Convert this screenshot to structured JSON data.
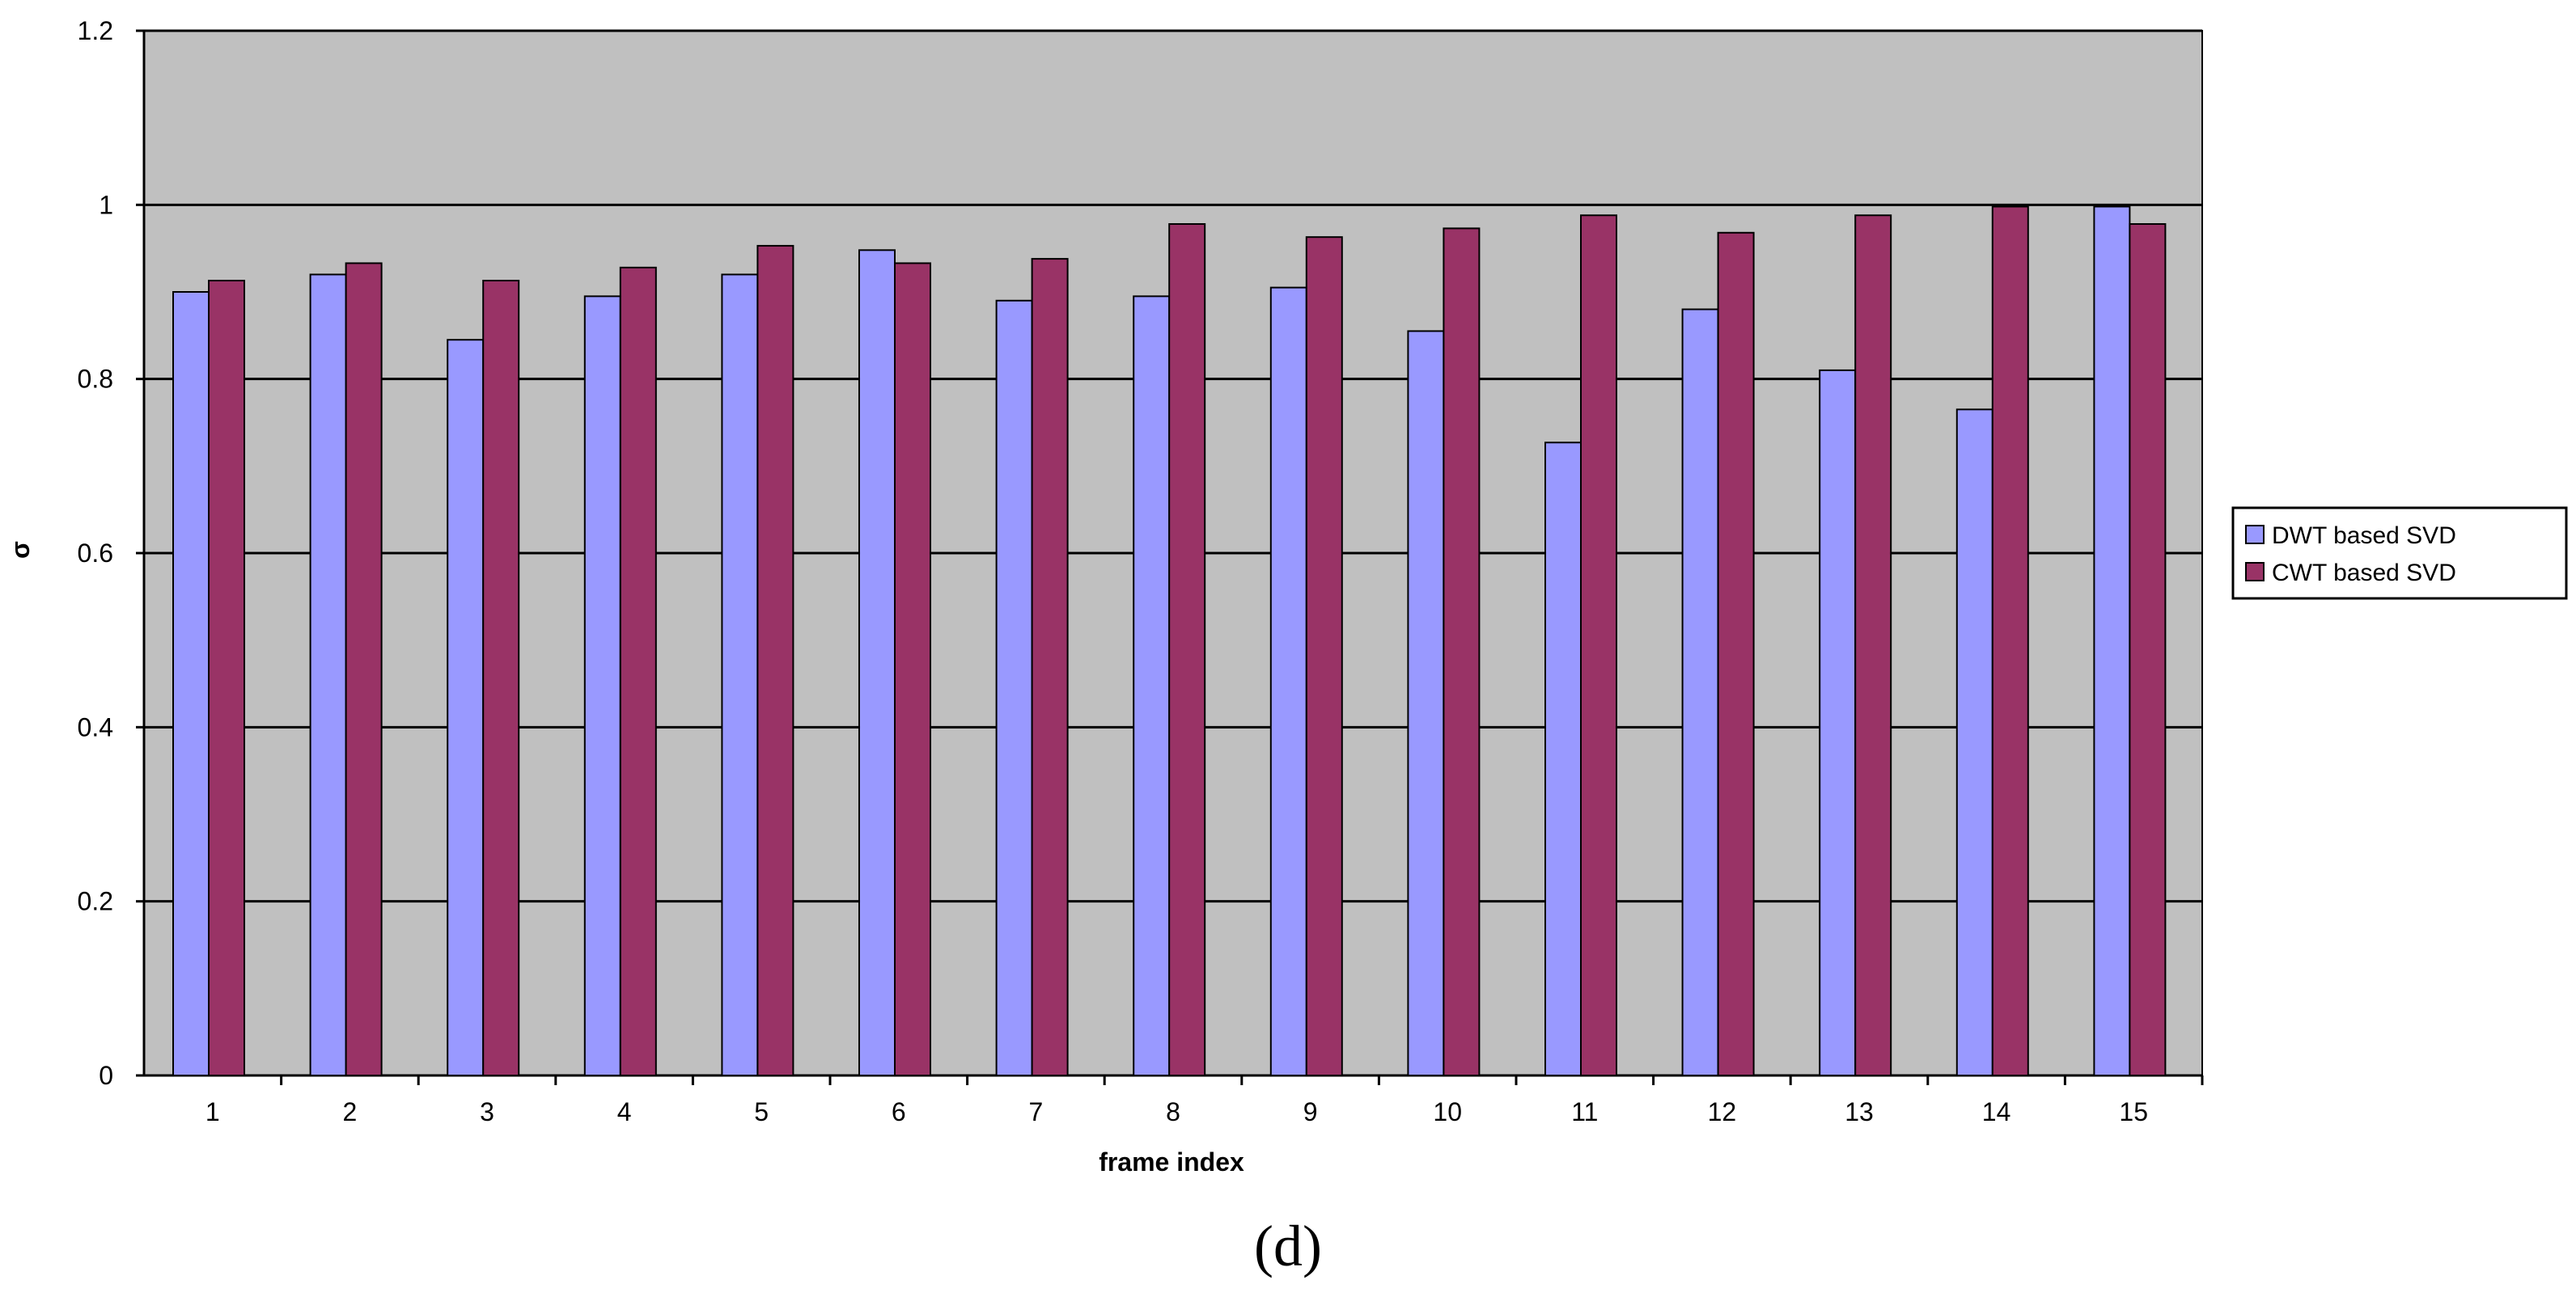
{
  "chart_data": {
    "type": "bar",
    "categories": [
      "1",
      "2",
      "3",
      "4",
      "5",
      "6",
      "7",
      "8",
      "9",
      "10",
      "11",
      "12",
      "13",
      "14",
      "15"
    ],
    "series": [
      {
        "name": "DWT based SVD",
        "color": "#9999ff",
        "values": [
          0.9,
          0.92,
          0.845,
          0.895,
          0.92,
          0.948,
          0.89,
          0.895,
          0.905,
          0.855,
          0.727,
          0.88,
          0.81,
          0.765,
          0.998
        ]
      },
      {
        "name": "CWT based SVD",
        "color": "#993366",
        "values": [
          0.913,
          0.933,
          0.913,
          0.928,
          0.953,
          0.933,
          0.938,
          0.978,
          0.963,
          0.973,
          0.988,
          0.968,
          0.988,
          0.998,
          0.978
        ]
      }
    ],
    "title": "",
    "xlabel": "frame index",
    "ylabel": "σ",
    "ylim": [
      0,
      1.2
    ],
    "yticks": [
      "0",
      "0.2",
      "0.4",
      "0.6",
      "0.8",
      "1",
      "1.2"
    ],
    "grid": true,
    "legend": "right",
    "plot_background": "#c0c0c0"
  },
  "caption": "(d)"
}
